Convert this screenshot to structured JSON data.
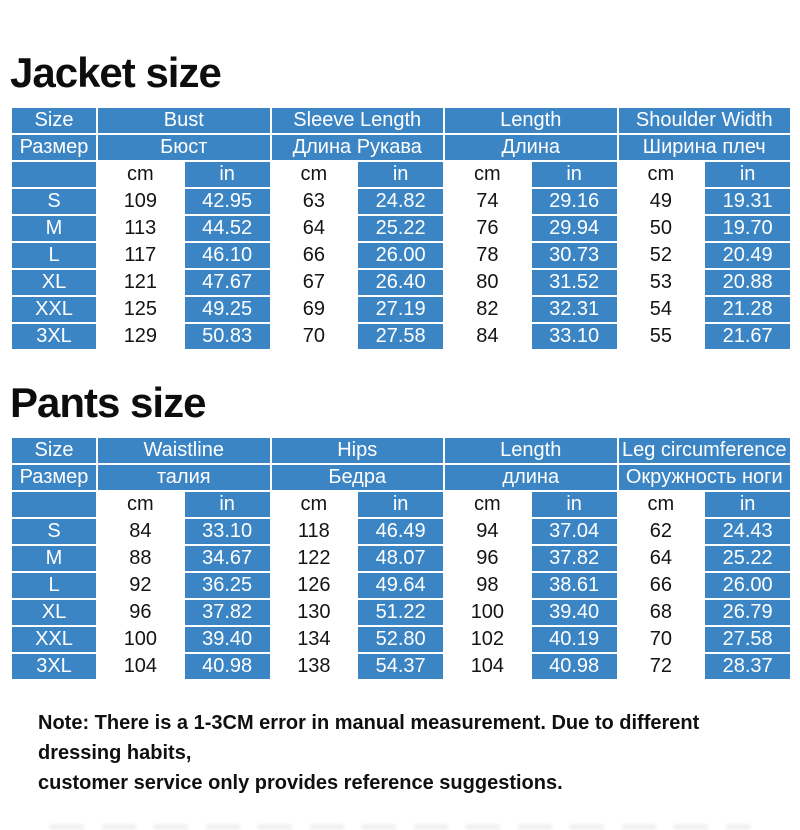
{
  "colors": {
    "table_blue": "#3c85c5",
    "text_dark": "#141414",
    "text_light": "#ffffff"
  },
  "units": {
    "cm": "cm",
    "in": "in"
  },
  "jacket": {
    "title": "Jacket size",
    "columns": [
      {
        "en": "Size",
        "ru": "Размер"
      },
      {
        "en": "Bust",
        "ru": "Бюст"
      },
      {
        "en": "Sleeve Length",
        "ru": "Длина Рукава"
      },
      {
        "en": "Length",
        "ru": "Длина"
      },
      {
        "en": "Shoulder Width",
        "ru": "Ширина плеч"
      }
    ],
    "rows": [
      {
        "size": "S",
        "values": [
          "109",
          "42.95",
          "63",
          "24.82",
          "74",
          "29.16",
          "49",
          "19.31"
        ]
      },
      {
        "size": "M",
        "values": [
          "113",
          "44.52",
          "64",
          "25.22",
          "76",
          "29.94",
          "50",
          "19.70"
        ]
      },
      {
        "size": "L",
        "values": [
          "117",
          "46.10",
          "66",
          "26.00",
          "78",
          "30.73",
          "52",
          "20.49"
        ]
      },
      {
        "size": "XL",
        "values": [
          "121",
          "47.67",
          "67",
          "26.40",
          "80",
          "31.52",
          "53",
          "20.88"
        ]
      },
      {
        "size": "XXL",
        "values": [
          "125",
          "49.25",
          "69",
          "27.19",
          "82",
          "32.31",
          "54",
          "21.28"
        ]
      },
      {
        "size": "3XL",
        "values": [
          "129",
          "50.83",
          "70",
          "27.58",
          "84",
          "33.10",
          "55",
          "21.67"
        ]
      }
    ]
  },
  "pants": {
    "title": "Pants size",
    "columns": [
      {
        "en": "Size",
        "ru": "Размер"
      },
      {
        "en": "Waistline",
        "ru": "талия"
      },
      {
        "en": "Hips",
        "ru": "Бедра"
      },
      {
        "en": "Length",
        "ru": "длина"
      },
      {
        "en": "Leg circumference",
        "ru": "Окружность ноги"
      }
    ],
    "rows": [
      {
        "size": "S",
        "values": [
          "84",
          "33.10",
          "118",
          "46.49",
          "94",
          "37.04",
          "62",
          "24.43"
        ]
      },
      {
        "size": "M",
        "values": [
          "88",
          "34.67",
          "122",
          "48.07",
          "96",
          "37.82",
          "64",
          "25.22"
        ]
      },
      {
        "size": "L",
        "values": [
          "92",
          "36.25",
          "126",
          "49.64",
          "98",
          "38.61",
          "66",
          "26.00"
        ]
      },
      {
        "size": "XL",
        "values": [
          "96",
          "37.82",
          "130",
          "51.22",
          "100",
          "39.40",
          "68",
          "26.79"
        ]
      },
      {
        "size": "XXL",
        "values": [
          "100",
          "39.40",
          "134",
          "52.80",
          "102",
          "40.19",
          "70",
          "27.58"
        ]
      },
      {
        "size": "3XL",
        "values": [
          "104",
          "40.98",
          "138",
          "54.37",
          "104",
          "40.98",
          "72",
          "28.37"
        ]
      }
    ]
  },
  "note": {
    "line1": "Note: There is a 1-3CM error in manual measurement. Due to different dressing habits,",
    "line2": "customer service only provides reference suggestions."
  }
}
